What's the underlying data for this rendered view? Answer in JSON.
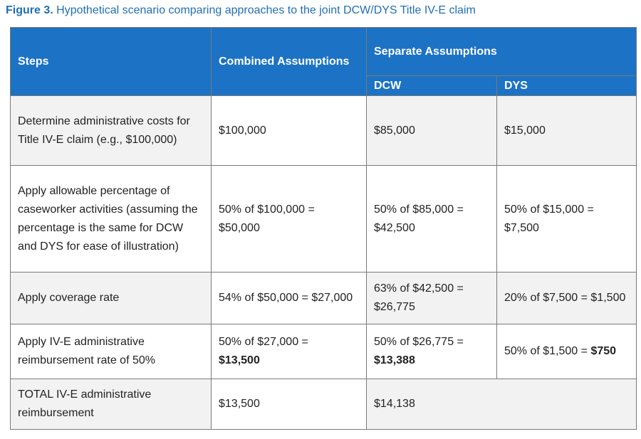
{
  "caption": {
    "label": "Figure 3.",
    "text": " Hypothetical scenario comparing approaches to the joint DCW/DYS Title IV-E claim"
  },
  "header": {
    "steps": "Steps",
    "combined": "Combined Assumptions",
    "separate": "Separate Assumptions",
    "dcw": "DCW",
    "dys": "DYS"
  },
  "rows": [
    {
      "step": "Determine administrative costs for Title IV-E claim (e.g., $100,000)",
      "combined": "$100,000",
      "dcw": "$85,000",
      "dys": "$15,000"
    },
    {
      "step": "Apply allowable percentage of caseworker activities (assuming the percentage is the same for DCW and DYS for ease of illustration)",
      "combined": "50% of $100,000 = $50,000",
      "dcw": "50% of $85,000 = $42,500",
      "dys": "50% of $15,000 = $7,500"
    },
    {
      "step": "Apply coverage rate",
      "combined": "54% of $50,000 = $27,000",
      "dcw": "63% of $42,500 = $26,775",
      "dys": "20% of $7,500 = $1,500"
    },
    {
      "step": "Apply IV-E administrative reimbursement rate of 50%",
      "combined_pre": "50% of $27,000 =",
      "combined_bold": "$13,500",
      "dcw_pre": "50% of $26,775 =",
      "dcw_bold": "$13,388",
      "dys_pre": "50% of $1,500 = ",
      "dys_bold": "$750"
    },
    {
      "step": "TOTAL IV-E administrative reimbursement",
      "combined": "$13,500",
      "separate": "$14,138"
    }
  ]
}
